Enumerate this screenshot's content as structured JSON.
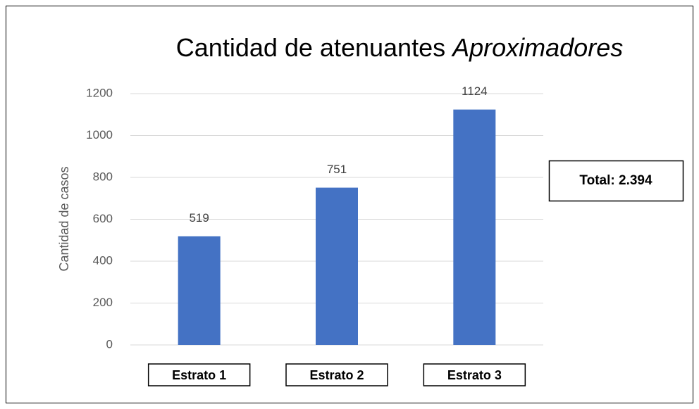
{
  "chart_data": {
    "type": "bar",
    "title": "Cantidad de atenuantes",
    "title_emphasis": "Aproximadores",
    "y_label": "Cantidad de casos",
    "categories": [
      "Estrato 1",
      "Estrato 2",
      "Estrato 3"
    ],
    "values": [
      519,
      751,
      1124
    ],
    "color": "#4472c4",
    "ylim": [
      0,
      1200
    ],
    "yticks": [
      0,
      200,
      400,
      600,
      800,
      1000,
      1200
    ],
    "grid": true,
    "annotation": "Total: 2.394"
  }
}
